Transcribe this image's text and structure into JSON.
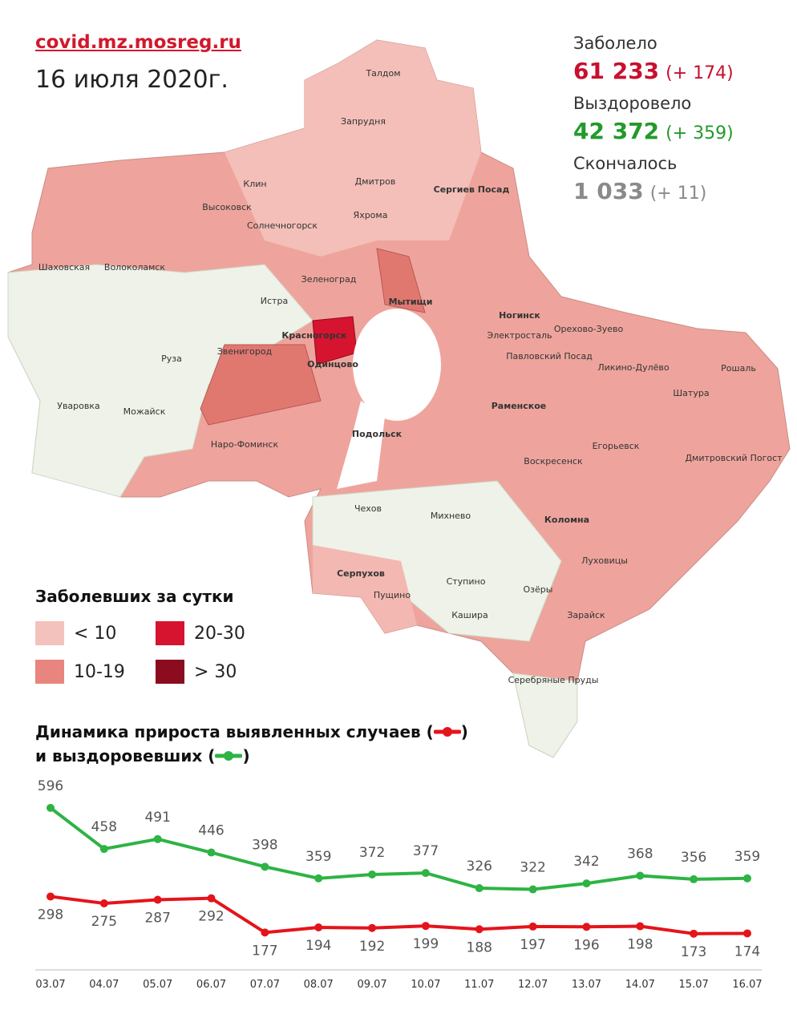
{
  "header": {
    "site": "covid.mz.mosreg.ru",
    "date": "16 июля 2020г."
  },
  "stats": [
    {
      "label": "Заболело",
      "value": "61 233",
      "delta": "(+ 174)",
      "color": "#c8102e"
    },
    {
      "label": "Выздоровело",
      "value": "42 372",
      "delta": "(+ 359)",
      "color": "#229a2b"
    },
    {
      "label": "Скончалось",
      "value": "1 033",
      "delta": "(+ 11)",
      "color": "#8a8a8a"
    }
  ],
  "map": {
    "labels": [
      "Талдом",
      "Запрудня",
      "Клин",
      "Дмитров",
      "Сергиев Посад",
      "Высоковск",
      "Яхрома",
      "Солнечногорск",
      "Шаховская",
      "Волоколамск",
      "Зеленоград",
      "Истра",
      "Мытищи",
      "Ногинск",
      "Орехово-Зуево",
      "Красногорск",
      "Электросталь",
      "Павловский Посад",
      "Звенигород",
      "Одинцово",
      "Руза",
      "Ликино-Дулёво",
      "Рошаль",
      "Шатура",
      "Уваровка",
      "Можайск",
      "Раменское",
      "Наро-Фоминск",
      "Подольск",
      "Егорьевск",
      "Дмитровский Погост",
      "Воскресенск",
      "Чехов",
      "Михнево",
      "Коломна",
      "Серпухов",
      "Луховицы",
      "Ступино",
      "Пущино",
      "Озёры",
      "Кашира",
      "Зарайск",
      "Серебряные Пруды"
    ]
  },
  "legend": {
    "title": "Заболевших за сутки",
    "items": [
      {
        "label": "< 10",
        "color": "#f4c2bd"
      },
      {
        "label": "10-19",
        "color": "#e8857f"
      },
      {
        "label": "20-30",
        "color": "#d7142f"
      },
      {
        "label": "> 30",
        "color": "#8a0c1e"
      }
    ]
  },
  "chart_data": {
    "type": "line",
    "title": "Динамика прироста",
    "title_connector": "и",
    "bracket_open": "(",
    "bracket_close": ")",
    "categories": [
      "03.07",
      "04.07",
      "05.07",
      "06.07",
      "07.07",
      "08.07",
      "09.07",
      "10.07",
      "11.07",
      "12.07",
      "13.07",
      "14.07",
      "15.07",
      "16.07"
    ],
    "series": [
      {
        "name": "выявленных случаев",
        "color": "#e4141b",
        "values": [
          298,
          275,
          287,
          292,
          177,
          194,
          192,
          199,
          188,
          197,
          196,
          198,
          173,
          174
        ]
      },
      {
        "name": "выздоровевших",
        "color": "#2eb344",
        "values": [
          596,
          458,
          491,
          446,
          398,
          359,
          372,
          377,
          326,
          322,
          342,
          368,
          356,
          359
        ]
      }
    ]
  }
}
